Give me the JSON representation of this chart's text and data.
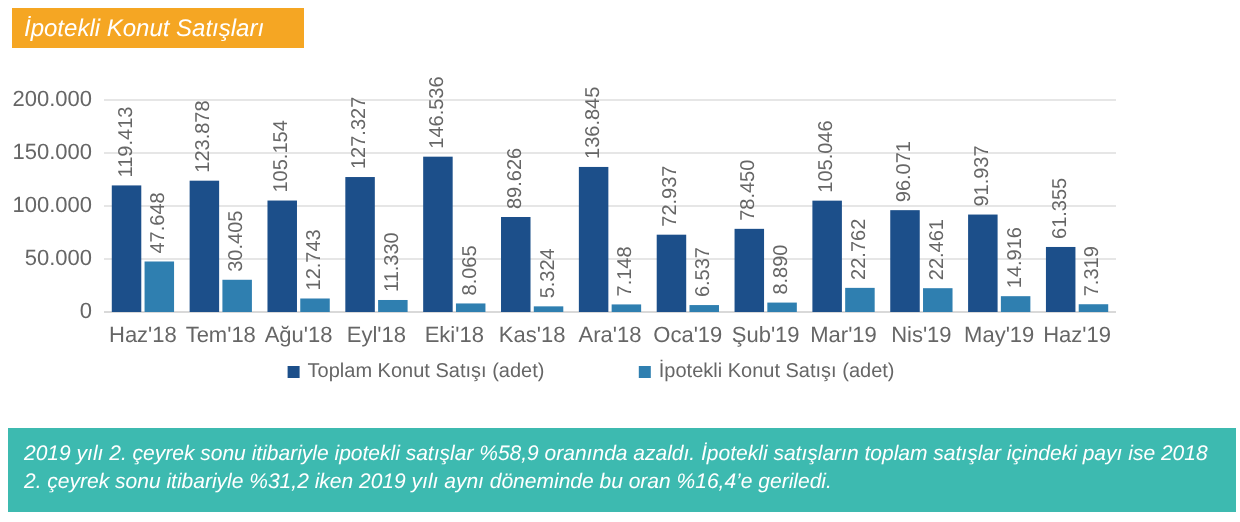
{
  "chart_data": {
    "type": "bar",
    "title": "İpotekli Konut Satışları",
    "categories": [
      "Haz'18",
      "Tem'18",
      "Ağu'18",
      "Eyl'18",
      "Eki'18",
      "Kas'18",
      "Ara'18",
      "Oca'19",
      "Şub'19",
      "Mar'19",
      "Nis'19",
      "May'19",
      "Haz'19"
    ],
    "series": [
      {
        "name": "Toplam Konut Satışı (adet)",
        "color": "#1c4f8a",
        "values": [
          119413,
          123878,
          105154,
          127327,
          146536,
          89626,
          136845,
          72937,
          78450,
          105046,
          96071,
          91937,
          61355
        ],
        "value_labels": [
          "119.413",
          "123.878",
          "105.154",
          "127.327",
          "146.536",
          "89.626",
          "136.845",
          "72.937",
          "78.450",
          "105.046",
          "96.071",
          "91.937",
          "61.355"
        ]
      },
      {
        "name": "İpotekli Konut Satışı (adet)",
        "color": "#2f7fb0",
        "values": [
          47648,
          30405,
          12743,
          11330,
          8065,
          5324,
          7148,
          6537,
          8890,
          22762,
          22461,
          14916,
          7319
        ],
        "value_labels": [
          "47.648",
          "30.405",
          "12.743",
          "11.330",
          "8.065",
          "5.324",
          "7.148",
          "6.537",
          "8.890",
          "22.762",
          "22.461",
          "14.916",
          "7.319"
        ]
      }
    ],
    "ylim": [
      0,
      200000
    ],
    "yticks": [
      0,
      {
        "value": 50000,
        "label": "50.000"
      },
      {
        "value": 100000,
        "label": "100.000"
      },
      {
        "value": 150000,
        "label": "150.000"
      },
      {
        "value": 200000,
        "label": "200.000"
      }
    ],
    "grid": "y",
    "legend": "bottom",
    "annotations": [
      "2019 yılı 2. çeyrek sonu itibariyle ipotekli satışlar %58,9 oranında azaldı. İpotekli satışların toplam satışlar içindeki payı ise 2018 2. çeyrek sonu itibariyle %31,2 iken 2019 yılı aynı döneminde bu oran %16,4’e geriledi."
    ]
  }
}
